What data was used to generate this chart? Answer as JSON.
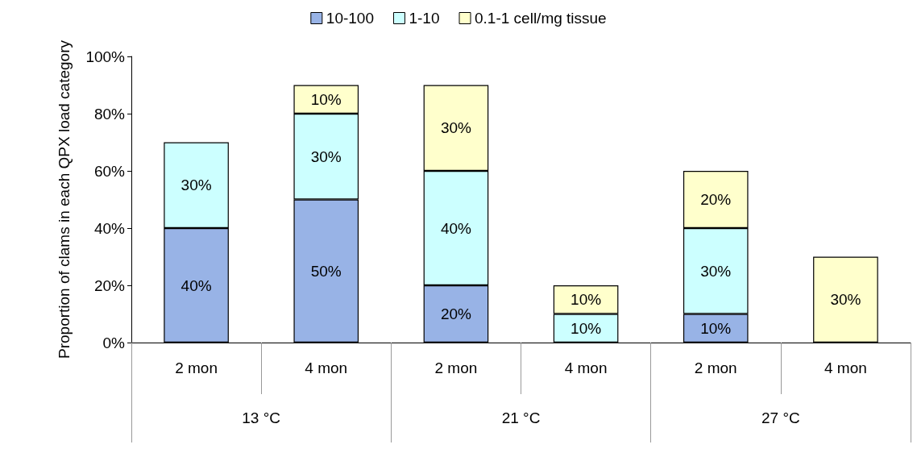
{
  "chart_data": {
    "type": "bar",
    "stacked": true,
    "ylabel": "Proportion of clams in each QPX load category",
    "categories": [
      "2 mon",
      "4 mon",
      "2 mon",
      "4 mon",
      "2 mon",
      "4 mon"
    ],
    "annotations": [
      "13 °C",
      "21 °C",
      "27 °C"
    ],
    "series": [
      {
        "name": "10-100",
        "color": "#98b3e6",
        "values": [
          40,
          50,
          20,
          null,
          10,
          null
        ],
        "value_labels": [
          "40%",
          "50%",
          "20%",
          null,
          "10%",
          null
        ]
      },
      {
        "name": "1-10",
        "color": "#ccffff",
        "values": [
          30,
          30,
          40,
          10,
          30,
          null
        ],
        "value_labels": [
          "30%",
          "30%",
          "40%",
          "10%",
          "30%",
          null
        ]
      },
      {
        "name": "0.1-1 cell/mg tissue",
        "color": "#ffffcc",
        "values": [
          null,
          10,
          30,
          10,
          20,
          30
        ],
        "value_labels": [
          null,
          "10%",
          "30%",
          "10%",
          "20%",
          "30%"
        ]
      }
    ],
    "ylim": [
      0,
      100
    ],
    "yticks": [
      {
        "value": 0,
        "label": "0%"
      },
      {
        "value": 20,
        "label": "20%"
      },
      {
        "value": 40,
        "label": "40%"
      },
      {
        "value": 60,
        "label": "60%"
      },
      {
        "value": 80,
        "label": "80%"
      },
      {
        "value": 100,
        "label": "100%"
      }
    ],
    "grid": false,
    "legend": "top"
  }
}
